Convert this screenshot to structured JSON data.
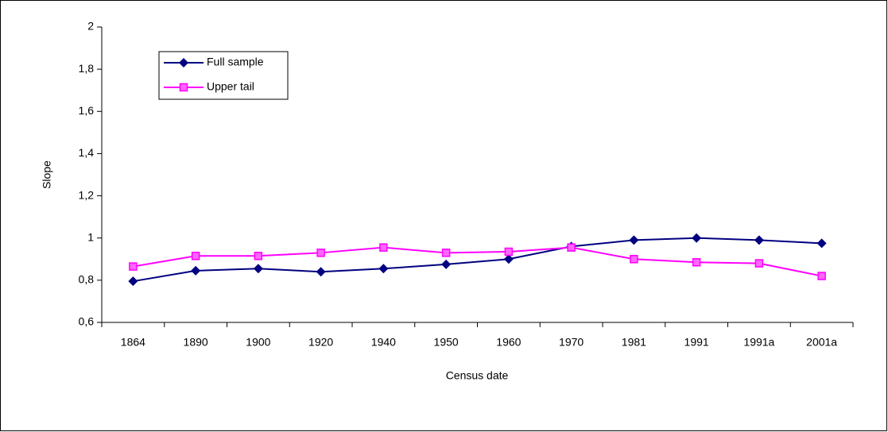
{
  "chart_data": {
    "type": "line",
    "categories": [
      "1864",
      "1890",
      "1900",
      "1920",
      "1940",
      "1950",
      "1960",
      "1970",
      "1981",
      "1991",
      "1991a",
      "2001a"
    ],
    "series": [
      {
        "name": "Full sample",
        "color": "#000080",
        "marker": "diamond",
        "values": [
          0.795,
          0.845,
          0.855,
          0.84,
          0.855,
          0.875,
          0.9,
          0.96,
          0.99,
          1.0,
          0.99,
          0.975
        ]
      },
      {
        "name": "Upper tail",
        "color": "#ff00ff",
        "marker": "square",
        "values": [
          0.865,
          0.915,
          0.915,
          0.93,
          0.955,
          0.93,
          0.935,
          0.955,
          0.9,
          0.885,
          0.88,
          0.82
        ]
      }
    ],
    "ylim": [
      0.6,
      2
    ],
    "yticks": [
      {
        "value": 0.6,
        "label": "0,6"
      },
      {
        "value": 0.8,
        "label": "0,8"
      },
      1,
      {
        "value": 1.2,
        "label": "1,2"
      },
      {
        "value": 1.4,
        "label": "1,4"
      },
      {
        "value": 1.6,
        "label": "1,6"
      },
      {
        "value": 1.8,
        "label": "1,8"
      },
      2
    ],
    "y_label": "Slope",
    "x_label": "Census date",
    "grid": false,
    "legend": "upper left"
  }
}
